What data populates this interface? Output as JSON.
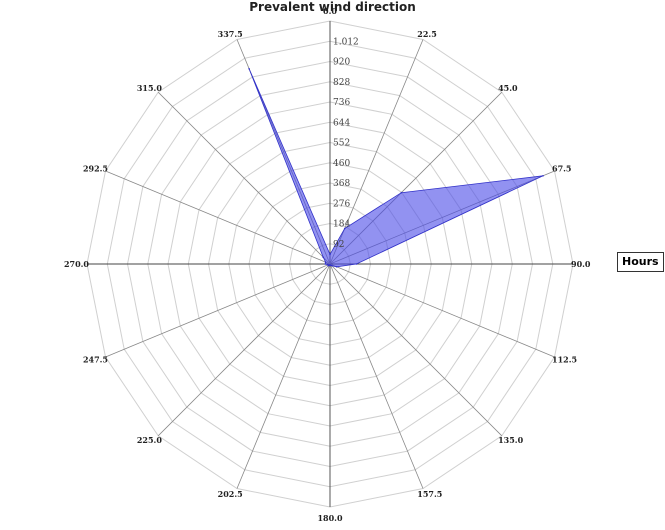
{
  "chart_data": {
    "type": "radar",
    "title": "Prevalent wind direction",
    "directions": [
      "0.0",
      "22.5",
      "45.0",
      "67.5",
      "90.0",
      "112.5",
      "135.0",
      "157.5",
      "180.0",
      "202.5",
      "225.0",
      "247.5",
      "270.0",
      "292.5",
      "315.0",
      "337.5"
    ],
    "ring_labels": [
      "92",
      "184",
      "276",
      "368",
      "460",
      "552",
      "644",
      "736",
      "828",
      "920",
      "1.012"
    ],
    "rmax": 1012,
    "series": [
      {
        "name": "Hours",
        "color": "#4a4ae8",
        "values": [
          40,
          160,
          420,
          960,
          110,
          30,
          10,
          5,
          5,
          5,
          10,
          10,
          20,
          20,
          40,
          880
        ]
      }
    ]
  },
  "legend": {
    "label": "Hours"
  }
}
